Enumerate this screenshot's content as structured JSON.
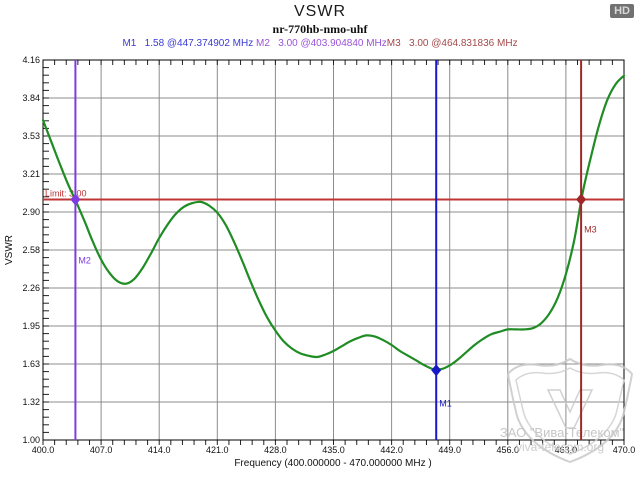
{
  "header": {
    "title": "VSWR",
    "subtitle": "nr-770hb-nmo-uhf",
    "hd_badge": "HD"
  },
  "marker_readout": {
    "m1": {
      "text": "M1   1.58 @447.374902 MHz ",
      "color": "#3a3ad4"
    },
    "m2": {
      "text": "M2   3.00 @403.904840 MHz",
      "color": "#9a52d8"
    },
    "m3": {
      "text": "M3   3.00 @464.831836 MHz",
      "color": "#a54848"
    }
  },
  "watermark": {
    "company": "ЗАО \"Вива-Телеком\"",
    "site": "viva-telecom.org",
    "color": "#bdbdbd"
  },
  "chart_data": {
    "type": "line",
    "title": "VSWR",
    "xlabel": "Frequency (400.000000 - 470.000000 MHz )",
    "ylabel": "VSWR",
    "xlim": [
      400,
      470
    ],
    "ylim": [
      1.0,
      4.16
    ],
    "grid": true,
    "legend_position": "none",
    "minor_subdivisions": 5,
    "x_tick_values": [
      400,
      407,
      414,
      421,
      428,
      435,
      442,
      449,
      456,
      463,
      470
    ],
    "x_tick_labels": [
      "400.0",
      "407.0",
      "414.0",
      "421.0",
      "428.0",
      "435.0",
      "442.0",
      "449.0",
      "456.0",
      "463.0",
      "470.0"
    ],
    "y_tick_values": [
      4.16,
      3.844,
      3.528,
      3.212,
      2.896,
      2.58,
      2.264,
      1.948,
      1.632,
      1.316,
      1.0
    ],
    "y_tick_labels": [
      "4.16",
      "3.84",
      "3.53",
      "3.21",
      "2.90",
      "2.58",
      "2.26",
      "1.95",
      "1.63",
      "1.32",
      "1.00"
    ],
    "limit_line": {
      "value": 3.0,
      "label": "Limit: 3.00",
      "color": "#bf3434"
    },
    "colors": {
      "grid": "#8c8c8c",
      "frame": "#000000",
      "ticks": "#222222"
    },
    "series": [
      {
        "name": "VSWR",
        "color": "#1f8c24",
        "x": [
          400,
          401,
          402,
          403,
          404,
          405,
          406,
          407,
          408,
          409,
          410,
          411,
          412,
          413,
          414,
          415,
          416,
          417,
          418,
          419,
          420,
          421,
          422,
          423,
          424,
          425,
          426,
          427,
          428,
          429,
          430,
          431,
          432,
          433,
          434,
          435,
          436,
          437,
          438,
          439,
          440,
          441,
          442,
          443,
          444,
          445,
          446,
          447,
          448,
          449,
          450,
          451,
          452,
          453,
          454,
          455,
          456,
          457,
          458,
          459,
          460,
          461,
          462,
          463,
          464,
          465,
          466,
          467,
          468,
          469,
          470
        ],
        "y": [
          3.66,
          3.48,
          3.3,
          3.13,
          2.98,
          2.82,
          2.65,
          2.5,
          2.39,
          2.32,
          2.3,
          2.34,
          2.43,
          2.55,
          2.68,
          2.79,
          2.88,
          2.94,
          2.97,
          2.98,
          2.95,
          2.89,
          2.79,
          2.65,
          2.49,
          2.32,
          2.16,
          2.02,
          1.91,
          1.82,
          1.76,
          1.72,
          1.7,
          1.69,
          1.71,
          1.74,
          1.78,
          1.82,
          1.85,
          1.87,
          1.86,
          1.83,
          1.79,
          1.74,
          1.7,
          1.66,
          1.62,
          1.59,
          1.59,
          1.62,
          1.67,
          1.73,
          1.79,
          1.84,
          1.88,
          1.9,
          1.92,
          1.92,
          1.92,
          1.93,
          1.97,
          2.05,
          2.18,
          2.38,
          2.66,
          3.05,
          3.35,
          3.62,
          3.83,
          3.96,
          4.03
        ]
      }
    ],
    "markers": [
      {
        "id": "M1",
        "freq": 447.374902,
        "vswr": 1.58,
        "color": "#1818c8",
        "label_offset": [
          3,
          36
        ]
      },
      {
        "id": "M2",
        "freq": 403.90484,
        "vswr": 3.0,
        "color": "#7e3ce0",
        "label_offset": [
          3,
          64
        ]
      },
      {
        "id": "M3",
        "freq": 464.831836,
        "vswr": 3.0,
        "color": "#9e2828",
        "label_offset": [
          3,
          33
        ]
      }
    ]
  }
}
